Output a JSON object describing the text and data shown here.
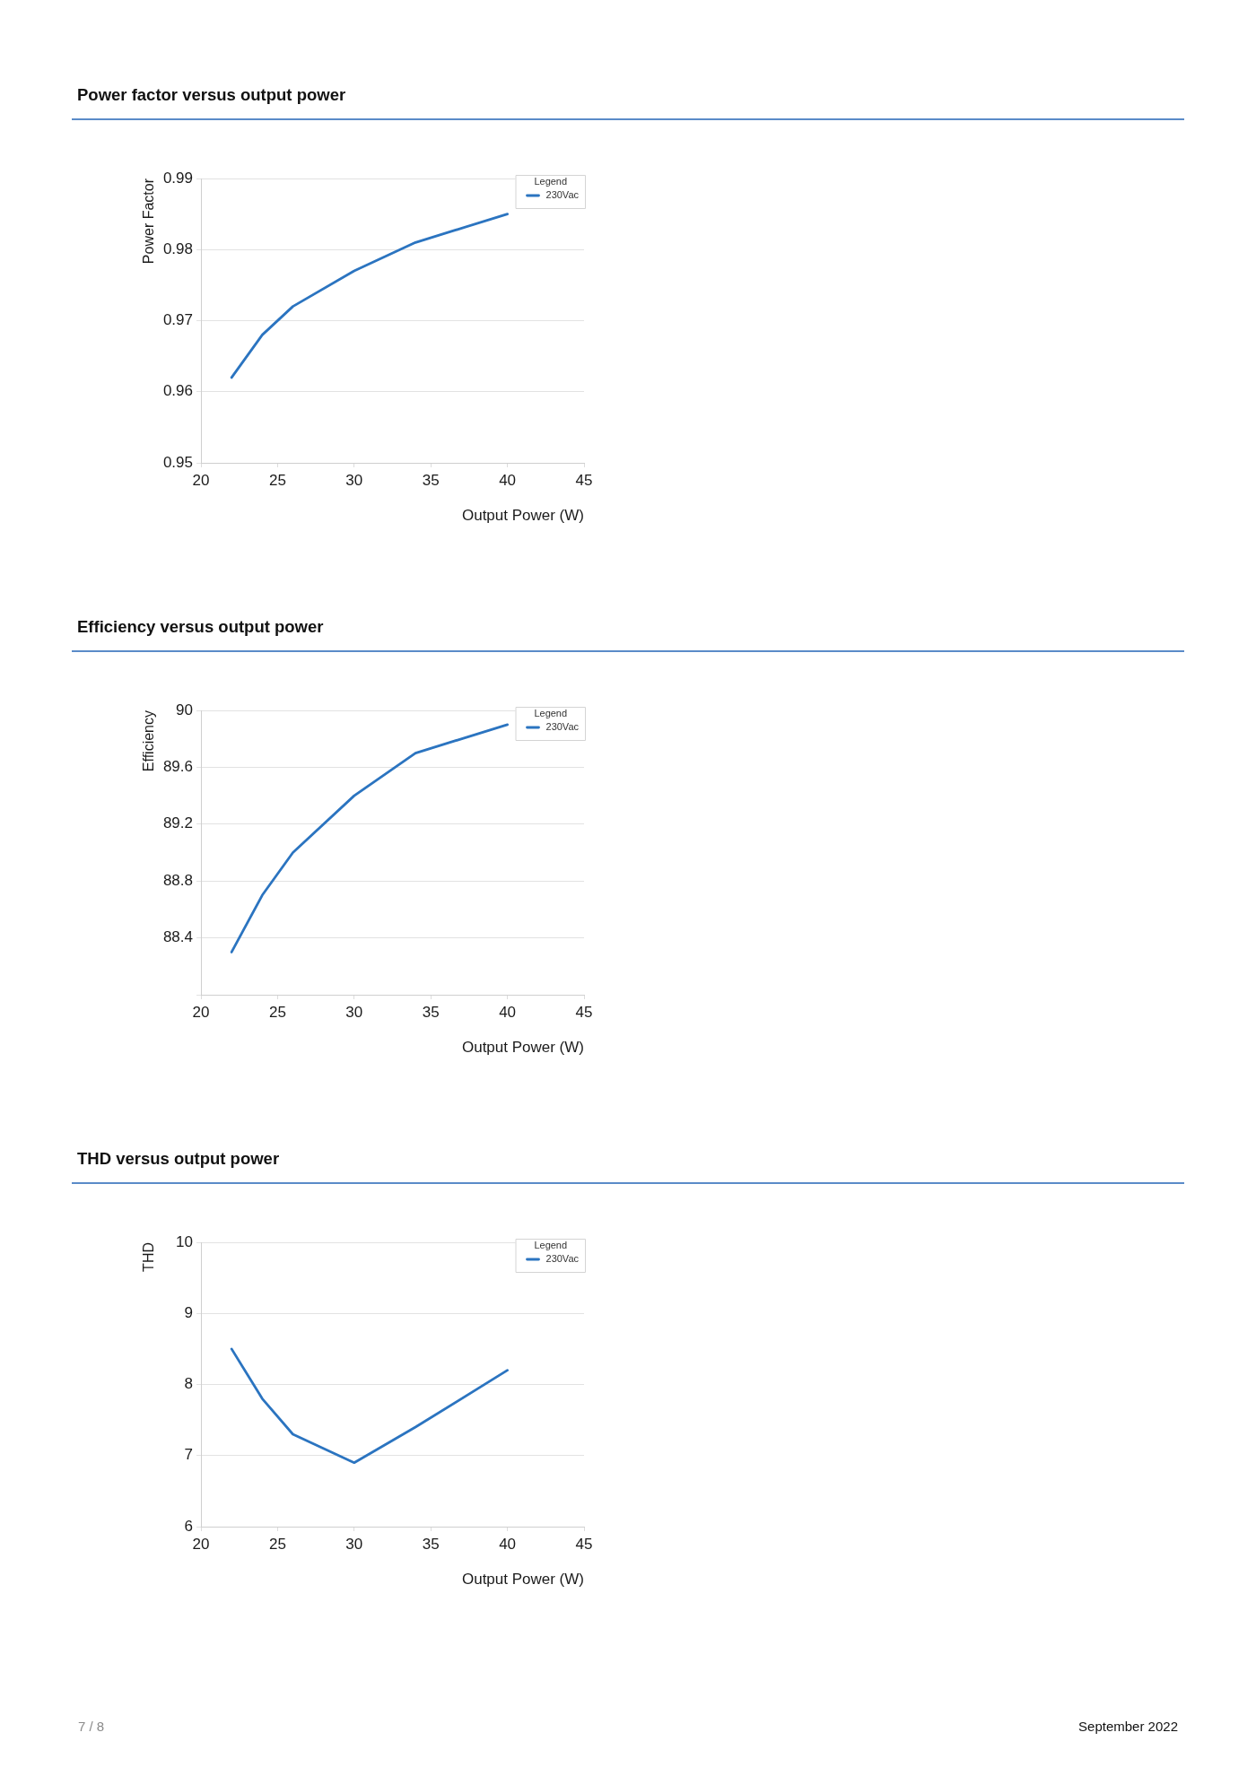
{
  "chart_data": [
    {
      "type": "line",
      "title": "Power factor versus output power",
      "xlabel": "Output Power (W)",
      "ylabel": "Power Factor",
      "legend_title": "Legend",
      "legend": "top right",
      "grid": "y",
      "x": [
        22,
        24,
        26,
        30,
        34,
        40
      ],
      "series": [
        {
          "name": "230Vac",
          "color": "#2b74c0",
          "values": [
            0.962,
            0.968,
            0.972,
            0.977,
            0.981,
            0.985
          ]
        }
      ],
      "xlim": [
        20,
        45
      ],
      "xticks": [
        20,
        25,
        30,
        35,
        40,
        45
      ],
      "ylim": [
        0.95,
        0.99
      ],
      "yticks": [
        0.95,
        0.96,
        0.97,
        0.98,
        0.99
      ]
    },
    {
      "type": "line",
      "title": "Efficiency versus output power",
      "xlabel": "Output Power (W)",
      "ylabel": "Efficiency",
      "legend_title": "Legend",
      "legend": "top right",
      "grid": "y",
      "x": [
        22,
        24,
        26,
        30,
        34,
        40
      ],
      "series": [
        {
          "name": "230Vac",
          "color": "#2b74c0",
          "values": [
            88.3,
            88.7,
            89.0,
            89.4,
            89.7,
            89.9
          ]
        }
      ],
      "xlim": [
        20,
        45
      ],
      "xticks": [
        20,
        25,
        30,
        35,
        40,
        45
      ],
      "ylim": [
        88,
        90
      ],
      "yticks": [
        {
          "value": 88,
          "label": null
        },
        88.4,
        88.8,
        89.2,
        89.6,
        90
      ]
    },
    {
      "type": "line",
      "title": "THD versus output power",
      "xlabel": "Output Power (W)",
      "ylabel": "THD",
      "legend_title": "Legend",
      "legend": "top right",
      "grid": "y",
      "x": [
        22,
        24,
        26,
        30,
        34,
        40
      ],
      "series": [
        {
          "name": "230Vac",
          "color": "#2b74c0",
          "values": [
            8.5,
            7.8,
            7.3,
            6.9,
            7.4,
            8.2
          ]
        }
      ],
      "xlim": [
        20,
        45
      ],
      "xticks": [
        20,
        25,
        30,
        35,
        40,
        45
      ],
      "ylim": [
        6,
        10
      ],
      "yticks": [
        6,
        7,
        8,
        9,
        10
      ],
      "annotations": [
        "7 / 8",
        "September 2022"
      ]
    }
  ]
}
